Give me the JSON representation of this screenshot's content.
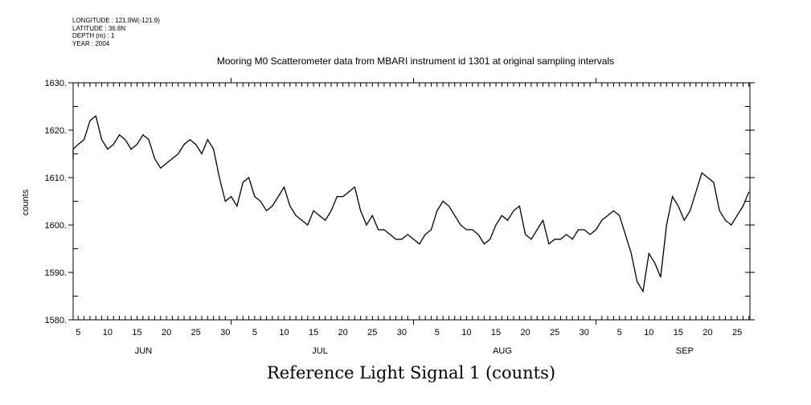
{
  "meta": {
    "longitude": "LONGITUDE : 121.9W(-121.9)",
    "latitude": "LATITUDE : 36.8N",
    "depth": "DEPTH (m) : 1",
    "year": "YEAR : 2004"
  },
  "chart_data": {
    "type": "line",
    "title": "Mooring M0 Scatterometer data from MBARI instrument id 1301 at original sampling intervals",
    "xlabel": "Reference Light Signal 1 (counts)",
    "ylabel": "counts",
    "ylim": [
      1580,
      1630
    ],
    "yticks": [
      "1580.",
      "1590.",
      "1600.",
      "1610.",
      "1620.",
      "1630."
    ],
    "x_start": "Jun 3",
    "x_step": "1 day",
    "months": [
      {
        "name": "JUN",
        "days": 30,
        "labels": [
          "5",
          "10",
          "15",
          "20",
          "25",
          "30"
        ]
      },
      {
        "name": "JUL",
        "days": 31,
        "labels": [
          "5",
          "10",
          "15",
          "20",
          "25",
          "30"
        ]
      },
      {
        "name": "AUG",
        "days": 31,
        "labels": [
          "5",
          "10",
          "15",
          "20",
          "25",
          "30"
        ]
      },
      {
        "name": "SEP",
        "days": 30,
        "labels": [
          "5",
          "10",
          "15",
          "20",
          "25"
        ]
      }
    ],
    "values": [
      1614,
      1616,
      1617,
      1618,
      1622,
      1623,
      1618,
      1616,
      1617,
      1619,
      1618,
      1616,
      1617,
      1619,
      1618,
      1614,
      1612,
      1613,
      1614,
      1615,
      1617,
      1618,
      1617,
      1615,
      1618,
      1616,
      1610,
      1605,
      1606,
      1604,
      1609,
      1610,
      1606,
      1605,
      1603,
      1604,
      1606,
      1608,
      1604,
      1602,
      1601,
      1600,
      1603,
      1602,
      1601,
      1603,
      1606,
      1606,
      1607,
      1608,
      1603,
      1600,
      1602,
      1599,
      1599,
      1598,
      1597,
      1597,
      1598,
      1597,
      1596,
      1598,
      1599,
      1603,
      1605,
      1604,
      1602,
      1600,
      1599,
      1599,
      1598,
      1596,
      1597,
      1600,
      1602,
      1601,
      1603,
      1604,
      1598,
      1597,
      1599,
      1601,
      1596,
      1597,
      1597,
      1598,
      1597,
      1599,
      1599,
      1598,
      1599,
      1601,
      1602,
      1603,
      1602,
      1598,
      1594,
      1588,
      1586,
      1594,
      1592,
      1589,
      1600,
      1606,
      1604,
      1601,
      1603,
      1607,
      1611,
      1610,
      1609,
      1603,
      1601,
      1600,
      1602,
      1604,
      1607
    ]
  }
}
